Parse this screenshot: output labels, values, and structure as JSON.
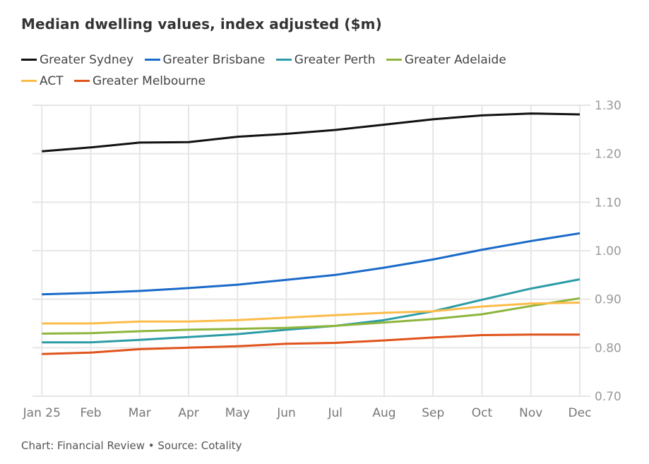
{
  "chart_data": {
    "type": "line",
    "title": "Median dwelling values, index adjusted ($m)",
    "xlabel": "",
    "ylabel": "",
    "categories": [
      "Jan 25",
      "Feb",
      "Mar",
      "Apr",
      "May",
      "Jun",
      "Jul",
      "Aug",
      "Sep",
      "Oct",
      "Nov",
      "Dec"
    ],
    "ylim": [
      0.7,
      1.3
    ],
    "yticks": [
      "1.30",
      "1.20",
      "1.10",
      "1.00",
      "0.90",
      "0.80",
      "0.70"
    ],
    "ytick_values": [
      1.3,
      1.2,
      1.1,
      1.0,
      0.9,
      0.8,
      0.7
    ],
    "y_axis_side": "right",
    "grid": true,
    "legend_position": "top-left",
    "series": [
      {
        "name": "Greater Sydney",
        "color": "#111111",
        "values": [
          1.205,
          1.213,
          1.223,
          1.224,
          1.235,
          1.241,
          1.249,
          1.26,
          1.271,
          1.279,
          1.283,
          1.281
        ]
      },
      {
        "name": "Greater Brisbane",
        "color": "#1a6ac9",
        "values": [
          0.91,
          0.913,
          0.917,
          0.923,
          0.93,
          0.94,
          0.95,
          0.965,
          0.982,
          1.002,
          1.02,
          1.036
        ]
      },
      {
        "name": "Greater Perth",
        "color": "#2b9ca6",
        "values": [
          0.811,
          0.811,
          0.816,
          0.822,
          0.828,
          0.837,
          0.845,
          0.857,
          0.875,
          0.899,
          0.922,
          0.941
        ]
      },
      {
        "name": "Greater Adelaide",
        "color": "#8db53c",
        "values": [
          0.829,
          0.83,
          0.834,
          0.837,
          0.839,
          0.841,
          0.845,
          0.852,
          0.859,
          0.869,
          0.886,
          0.902
        ]
      },
      {
        "name": "ACT",
        "color": "#fbbc4a",
        "values": [
          0.85,
          0.85,
          0.854,
          0.854,
          0.857,
          0.862,
          0.867,
          0.872,
          0.875,
          0.885,
          0.891,
          0.893
        ]
      },
      {
        "name": "Greater Melbourne",
        "color": "#e0531b",
        "values": [
          0.787,
          0.79,
          0.797,
          0.8,
          0.803,
          0.808,
          0.81,
          0.815,
          0.821,
          0.826,
          0.827,
          0.827
        ]
      }
    ]
  },
  "legend_rows": [
    [
      0,
      1,
      2,
      3
    ],
    [
      4,
      5
    ]
  ],
  "source": "Chart: Financial Review • Source: Cotality"
}
